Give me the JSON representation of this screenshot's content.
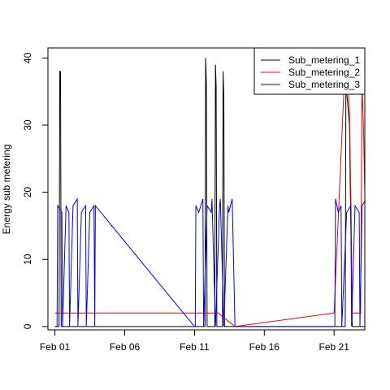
{
  "chart_data": {
    "type": "line",
    "title": "",
    "xlabel": "",
    "ylabel": "Energy sub metering",
    "x_ticks": [
      "Feb 01",
      "Feb 06",
      "Feb 11",
      "Feb 16",
      "Feb 21"
    ],
    "y_ticks": [
      0,
      10,
      20,
      30,
      40
    ],
    "xlim": [
      0.5,
      23.2
    ],
    "ylim": [
      -0.5,
      41.5
    ],
    "grid": false,
    "legend_position": "top-right",
    "series": [
      {
        "name": "Sub_metering_1",
        "color": "#000000",
        "x": [
          0.0,
          0.3,
          0.35,
          0.4,
          0.45,
          0.5,
          1.0,
          1.05,
          1.1,
          1.15,
          1.2,
          1.4,
          2.0,
          2.9,
          10.0,
          10.75,
          10.8,
          10.85,
          10.9,
          11.0,
          11.45,
          11.5,
          11.55,
          11.6,
          12.0,
          12.05,
          12.1,
          12.15,
          12.2,
          12.9,
          20.0,
          20.75,
          20.8,
          20.85,
          20.9,
          21.1,
          21.3,
          21.7,
          21.9,
          21.95,
          22.0,
          22.05,
          22.5
        ],
        "y": [
          0,
          0,
          38,
          38,
          0,
          0,
          0,
          0,
          0,
          0,
          0,
          0,
          0,
          0,
          0,
          0,
          40,
          36,
          0,
          0,
          0,
          39,
          36,
          0,
          0,
          38,
          34,
          0,
          0,
          0,
          0,
          0,
          0,
          38,
          35,
          30,
          0,
          0,
          0,
          0,
          0,
          0,
          0
        ]
      },
      {
        "name": "Sub_metering_2",
        "color": "#ff0000",
        "x": [
          0.0,
          2.9,
          10.0,
          11.7,
          12.9,
          20.0,
          20.7,
          20.8,
          20.9,
          21.0,
          21.1,
          21.2,
          21.3,
          21.9,
          22.0,
          22.1,
          22.2,
          22.3,
          22.4,
          22.5
        ],
        "y": [
          2,
          2,
          2,
          2,
          0,
          2,
          35,
          38,
          40,
          36,
          32,
          20,
          2,
          2,
          36,
          30,
          20,
          5,
          2,
          2
        ]
      },
      {
        "name": "Sub_metering_3",
        "color": "#0000ff",
        "x": [
          0.0,
          0.15,
          0.2,
          0.5,
          0.55,
          0.8,
          1.0,
          1.05,
          1.3,
          1.6,
          1.65,
          1.9,
          2.2,
          2.25,
          2.5,
          2.8,
          2.85,
          2.9,
          10.0,
          10.05,
          10.1,
          10.3,
          10.6,
          10.65,
          10.9,
          11.2,
          11.25,
          11.5,
          11.8,
          11.85,
          12.1,
          12.4,
          12.45,
          12.7,
          12.9,
          20.0,
          20.05,
          20.1,
          20.3,
          20.5,
          20.55,
          20.9,
          21.2,
          21.25,
          21.5,
          21.8,
          21.85,
          22.0,
          22.3,
          22.35,
          22.5
        ],
        "y": [
          0,
          0,
          18,
          17,
          0,
          18,
          17,
          0,
          18,
          19,
          0,
          17,
          18,
          0,
          17,
          18,
          0,
          18,
          0,
          0,
          18,
          17,
          19,
          0,
          18,
          17,
          19,
          0,
          18,
          19,
          0,
          18,
          17,
          19,
          0,
          0,
          0,
          19,
          17,
          18,
          0,
          17,
          18,
          0,
          18,
          17,
          0,
          18,
          19,
          0,
          17
        ]
      }
    ]
  }
}
